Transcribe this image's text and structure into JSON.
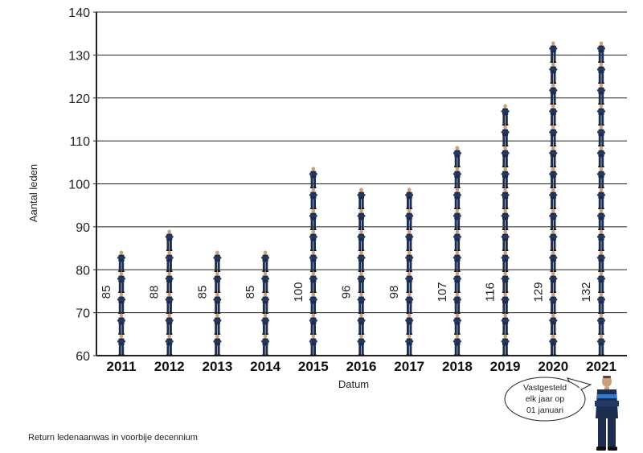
{
  "chart_data": {
    "type": "bar",
    "categories": [
      "2011",
      "2012",
      "2013",
      "2014",
      "2015",
      "2016",
      "2017",
      "2018",
      "2019",
      "2020",
      "2021"
    ],
    "values": [
      85,
      88,
      85,
      85,
      100,
      96,
      98,
      107,
      116,
      129,
      132
    ],
    "xlabel": "Datum",
    "ylabel": "Aantal leden",
    "ylim": [
      60,
      140
    ],
    "yticks": [
      60,
      70,
      80,
      90,
      100,
      110,
      120,
      130,
      140
    ],
    "grid": true,
    "bar_style": "stacked-figures"
  },
  "caption": "Return ledenaanwas in voorbije decennium",
  "callout": {
    "lines": [
      "Vastgesteld",
      "elk jaar op",
      "01 januari"
    ]
  },
  "colors": {
    "figure_body": "#1c2d4f",
    "figure_accent": "#3a78c8",
    "figure_skin": "#caa07a",
    "grid": "#222222"
  }
}
